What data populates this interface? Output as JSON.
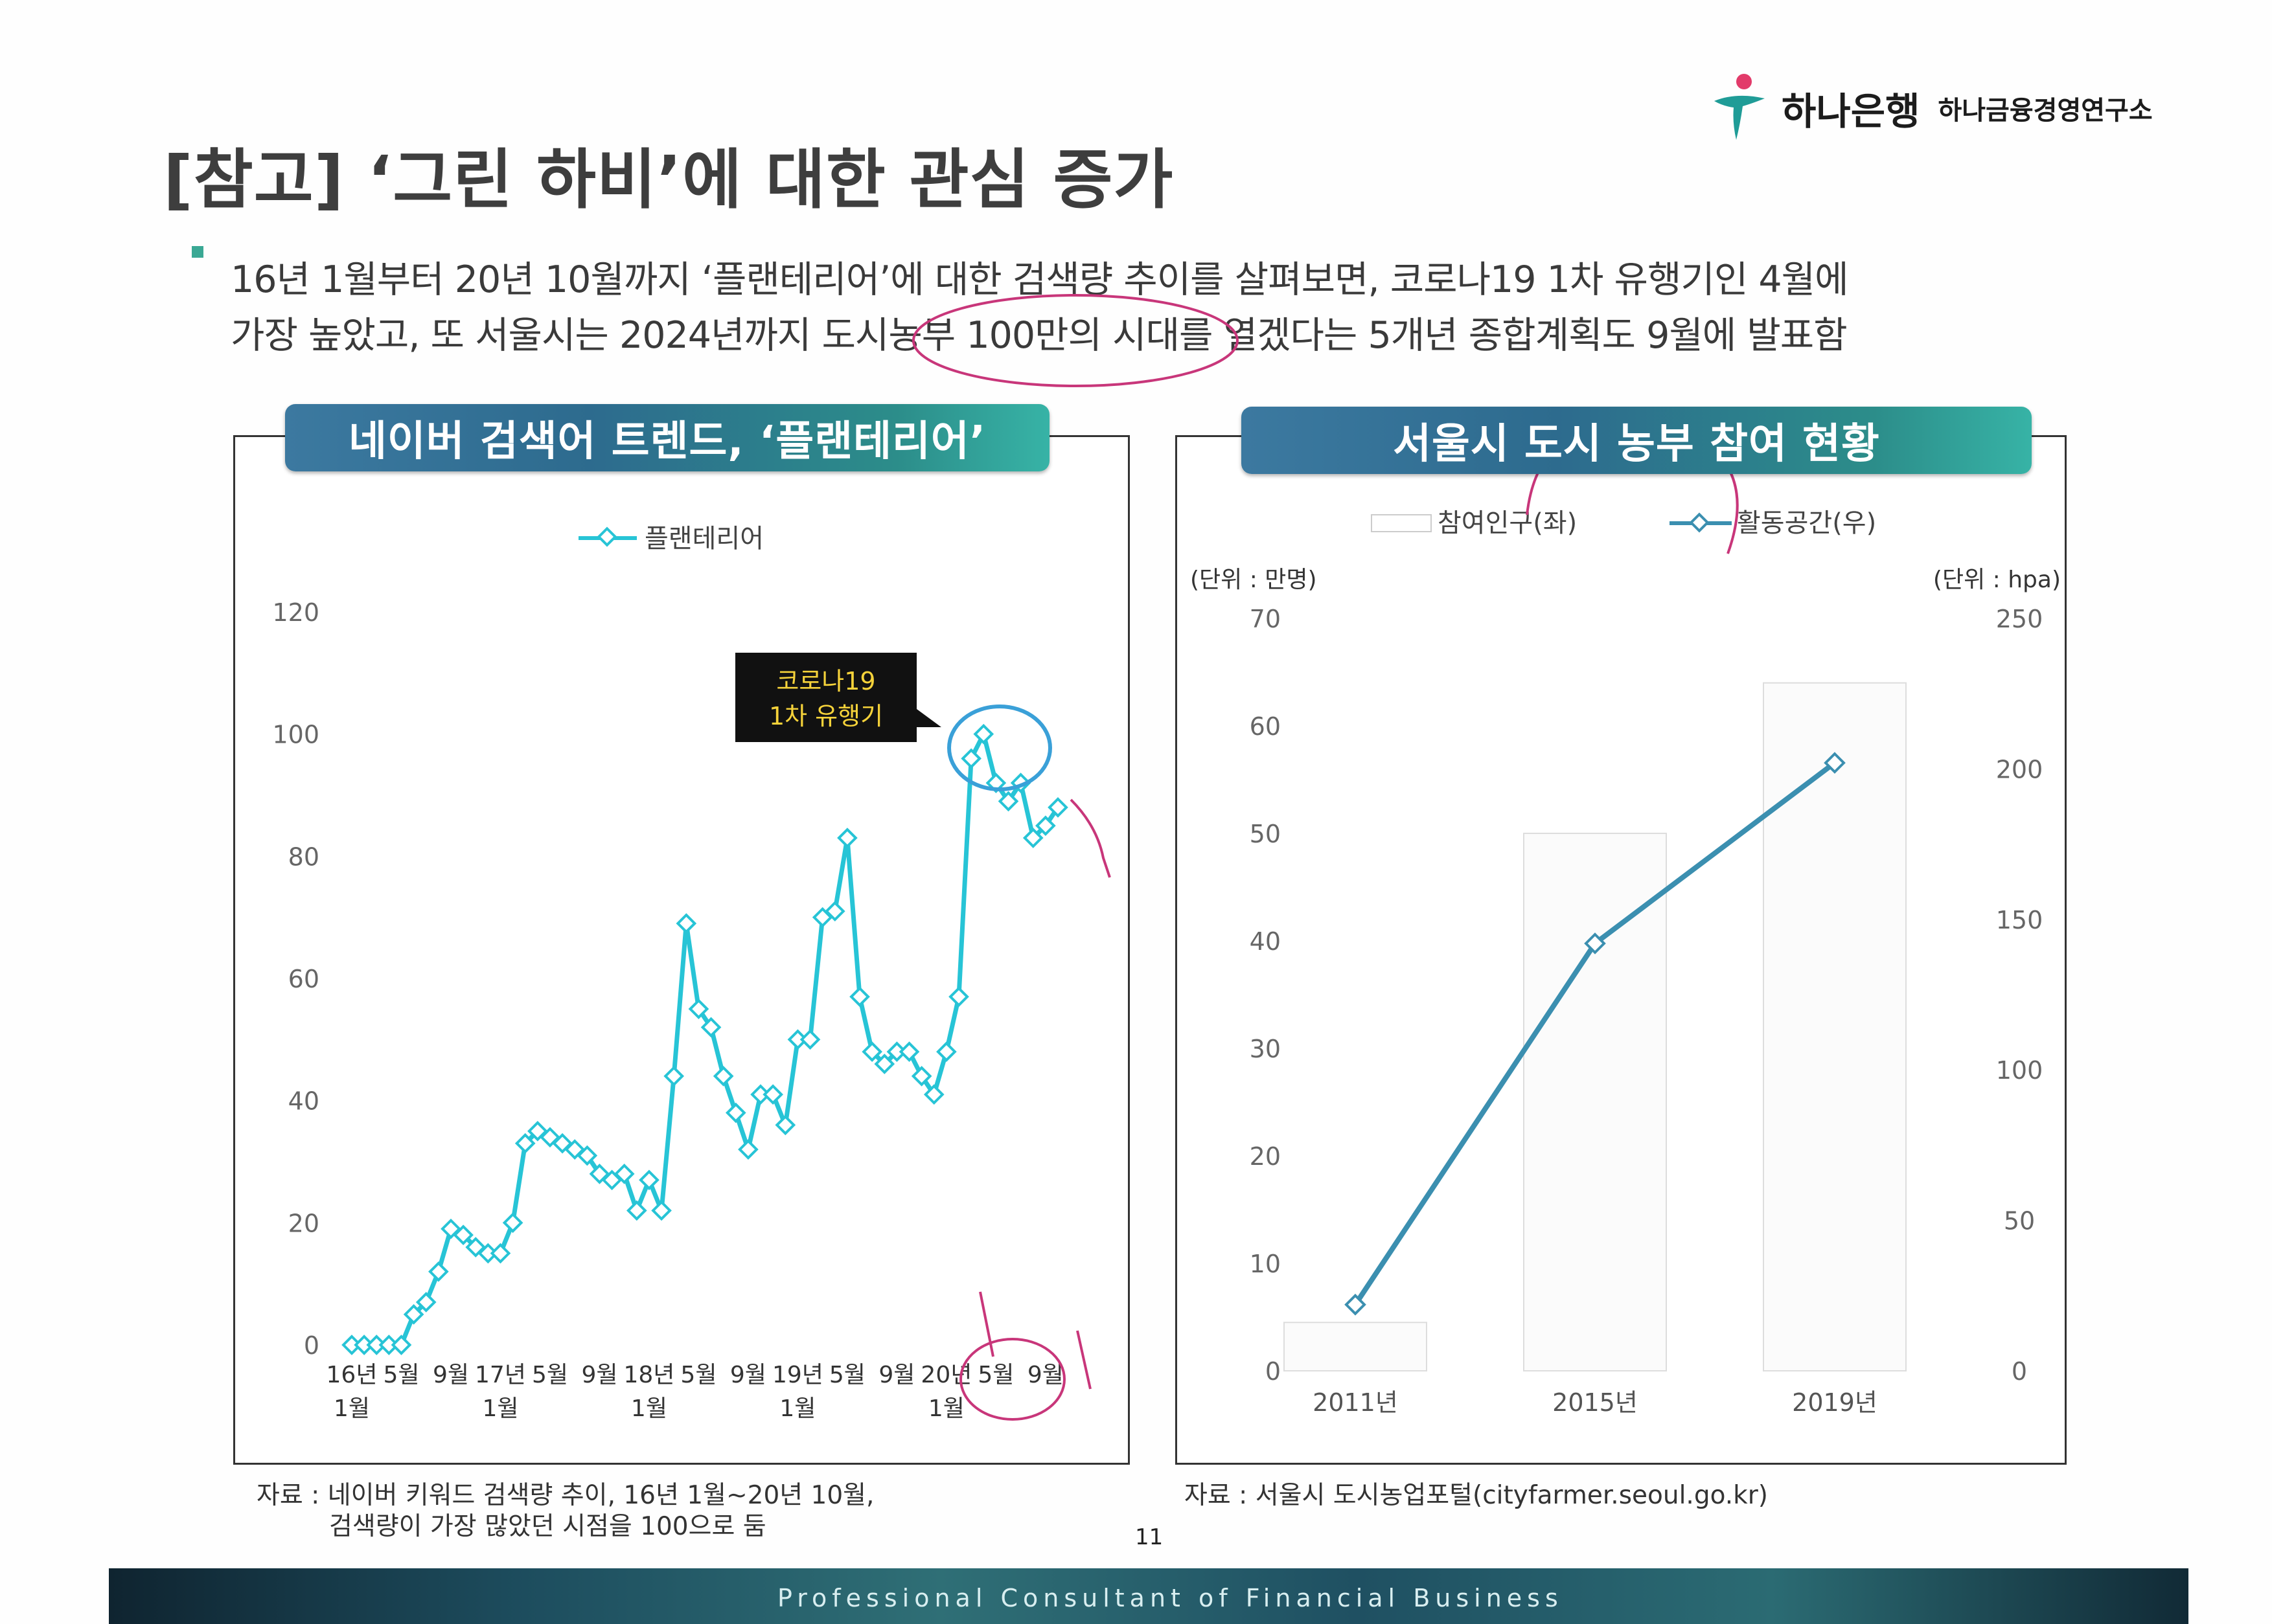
{
  "header": {
    "bank_name": "하나은행",
    "institute_name": "하나금융경영연구소",
    "title": "[참고] ‘그린 하비’에 대한 관심 증가"
  },
  "body": {
    "line1": "16년 1월부터 20년 10월까지 ‘플랜테리어’에 대한 검색량 추이를 살펴보면, 코로나19 1차 유행기인 4월에",
    "line2": "가장 높았고, 또 서울시는 2024년까지 도시농부 100만의 시대를 열겠다는 5개년 종합계획도 9월에 발표함"
  },
  "left_chart": {
    "banner": "네이버 검색어 트렌드, ‘플랜테리어’",
    "source_line1": "자료 : 네이버 키워드 검색량 추이, 16년 1월~20년 10월,",
    "source_line2": "검색량이 가장 많았던 시점을 100으로 둠",
    "annotation_line1": "코로나19",
    "annotation_line2": "1차 유행기"
  },
  "right_chart": {
    "banner": "서울시 도시 농부 참여 현황",
    "source": "자료 : 서울시 도시농업포털(cityfarmer.seoul.go.kr)"
  },
  "footer": {
    "page_number": "11",
    "tagline": "Professional Consultant of Financial Business"
  },
  "colors": {
    "line_left": "#27c4d6",
    "line_right": "#3b8fb0",
    "marker_fill": "#ffffff",
    "annotation_bg": "#111111",
    "annotation_text": "#f5d23a",
    "banner_start": "#3c79a0",
    "banner_end": "#37b3a6",
    "pen_mark": "#c8367a"
  },
  "chart_data": [
    {
      "type": "line",
      "series": [
        {
          "name": "플랜테리어",
          "values": [
            0,
            0,
            0,
            0,
            0,
            5,
            7,
            12,
            19,
            18,
            16,
            15,
            15,
            20,
            33,
            35,
            34,
            33,
            32,
            31,
            28,
            27,
            28,
            22,
            27,
            22,
            44,
            69,
            55,
            52,
            44,
            38,
            32,
            41,
            41,
            36,
            50,
            50,
            70,
            71,
            83,
            57,
            48,
            46,
            48,
            48,
            44,
            41,
            48,
            57,
            96,
            100,
            92,
            89,
            92,
            83,
            85,
            88
          ]
        }
      ],
      "x_tick_labels": [
        [
          "16년",
          "1월"
        ],
        [
          "5월"
        ],
        [
          "9월"
        ],
        [
          "17년",
          "1월"
        ],
        [
          "5월"
        ],
        [
          "9월"
        ],
        [
          "18년",
          "1월"
        ],
        [
          "5월"
        ],
        [
          "9월"
        ],
        [
          "19년",
          "1월"
        ],
        [
          "5월"
        ],
        [
          "9월"
        ],
        [
          "20년",
          "1월"
        ],
        [
          "5월"
        ],
        [
          "9월"
        ]
      ],
      "x_tick_month_index": [
        0,
        4,
        8,
        12,
        16,
        20,
        24,
        28,
        32,
        36,
        40,
        44,
        48,
        52,
        56
      ],
      "ylim": [
        0,
        120
      ],
      "y_ticks": [
        0,
        20,
        40,
        60,
        80,
        100,
        120
      ],
      "legend_position": "top-center",
      "grid": false
    },
    {
      "type": "bar",
      "categories": [
        "2011년",
        "2015년",
        "2019년"
      ],
      "series": [
        {
          "name": "참여인구(좌)",
          "type": "bar",
          "axis": "left",
          "values": [
            4.5,
            50,
            64
          ]
        },
        {
          "name": "활동공간(우)",
          "type": "line",
          "axis": "right",
          "values": [
            22,
            142,
            202
          ]
        }
      ],
      "left_axis": {
        "unit_label": "(단위 : 만명)",
        "ylim": [
          0,
          70
        ],
        "ticks": [
          0,
          10,
          20,
          30,
          40,
          50,
          60,
          70
        ]
      },
      "right_axis": {
        "unit_label": "(단위 : hpa)",
        "ylim": [
          0,
          250
        ],
        "ticks": [
          0,
          50,
          100,
          150,
          200,
          250
        ]
      },
      "legend_position": "top-center",
      "grid": false
    }
  ]
}
